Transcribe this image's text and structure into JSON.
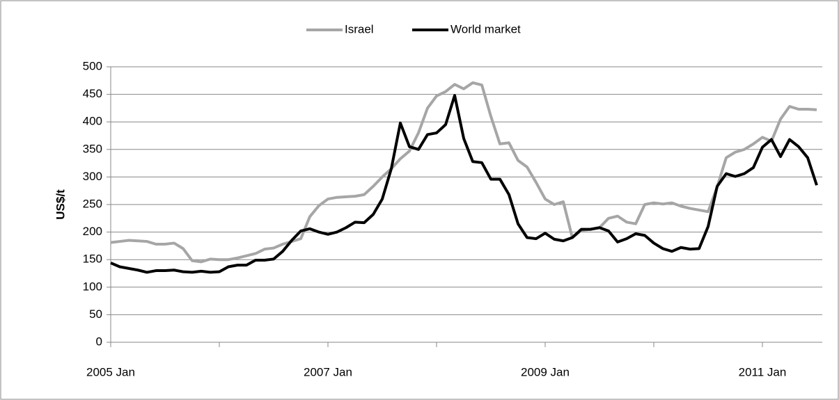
{
  "chart_data": {
    "type": "line",
    "y_label": "US$/t",
    "categories": [
      "2005 Jan",
      null,
      null,
      null,
      null,
      null,
      null,
      null,
      null,
      null,
      null,
      null,
      null,
      null,
      null,
      null,
      null,
      null,
      null,
      null,
      null,
      null,
      null,
      null,
      "2007 Jan",
      null,
      null,
      null,
      null,
      null,
      null,
      null,
      null,
      null,
      null,
      null,
      null,
      null,
      null,
      null,
      null,
      null,
      null,
      null,
      null,
      null,
      null,
      null,
      "2009 Jan",
      null,
      null,
      null,
      null,
      null,
      null,
      null,
      null,
      null,
      null,
      null,
      null,
      null,
      null,
      null,
      null,
      null,
      null,
      null,
      null,
      null,
      null,
      null,
      "2011 Jan",
      null,
      null,
      null,
      null,
      null,
      null
    ],
    "series": [
      {
        "name": "Israel",
        "color": "#a6a6a6",
        "values": [
          181,
          183,
          185,
          184,
          183,
          178,
          178,
          180,
          170,
          148,
          146,
          151,
          150,
          150,
          153,
          157,
          161,
          169,
          171,
          178,
          183,
          188,
          228,
          248,
          260,
          263,
          264,
          265,
          268,
          283,
          300,
          315,
          333,
          347,
          380,
          425,
          447,
          455,
          468,
          460,
          471,
          467,
          410,
          360,
          362,
          330,
          318,
          290,
          260,
          250,
          255,
          190,
          203,
          205,
          208,
          225,
          229,
          218,
          215,
          250,
          253,
          251,
          253,
          247,
          243,
          240,
          237,
          282,
          335,
          345,
          350,
          360,
          372,
          365,
          405,
          428,
          423,
          423,
          422
        ]
      },
      {
        "name": "World market",
        "color": "#000000",
        "values": [
          144,
          137,
          134,
          131,
          127,
          130,
          130,
          131,
          128,
          127,
          129,
          127,
          128,
          137,
          140,
          140,
          149,
          149,
          151,
          165,
          185,
          202,
          206,
          200,
          196,
          200,
          208,
          218,
          217,
          232,
          260,
          315,
          398,
          355,
          350,
          377,
          380,
          395,
          448,
          370,
          328,
          326,
          296,
          296,
          268,
          215,
          190,
          188,
          198,
          187,
          184,
          190,
          205,
          205,
          208,
          202,
          182,
          188,
          197,
          194,
          180,
          170,
          165,
          172,
          169,
          170,
          210,
          283,
          306,
          301,
          306,
          317,
          354,
          368,
          337,
          368,
          355,
          335,
          285
        ]
      }
    ],
    "ylim": [
      0,
      500
    ],
    "yticks": [
      0,
      50,
      100,
      150,
      200,
      250,
      300,
      350,
      400,
      450,
      500
    ],
    "grid": true,
    "legend": "top"
  }
}
